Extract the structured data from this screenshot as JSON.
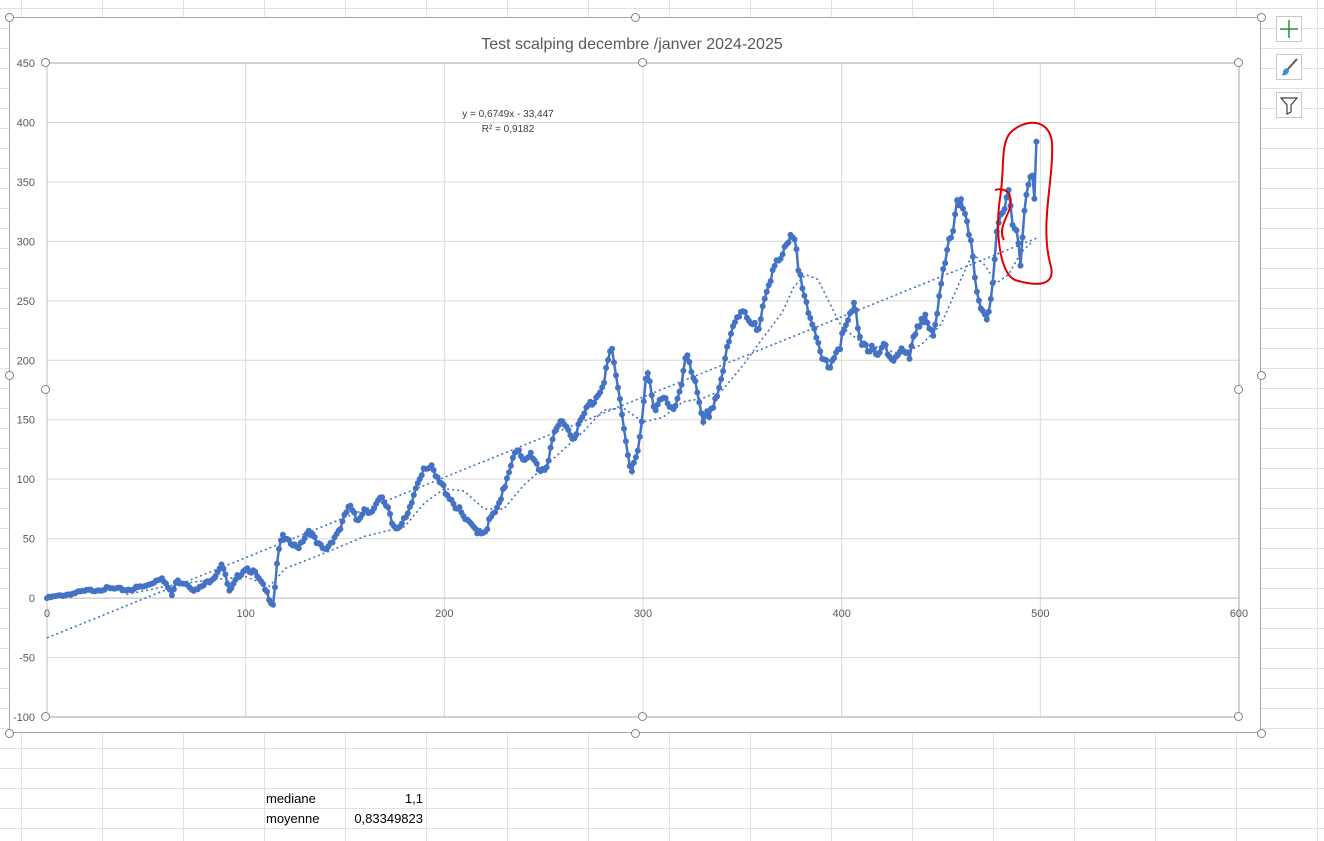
{
  "sheet": {
    "stats": [
      {
        "label": "mediane",
        "value": "1,1"
      },
      {
        "label": "moyenne",
        "value": "0,83349823"
      }
    ]
  },
  "side_buttons": [
    {
      "name": "chart-elements-button",
      "icon": "plus-icon"
    },
    {
      "name": "chart-styles-button",
      "icon": "brush-icon"
    },
    {
      "name": "chart-filters-button",
      "icon": "filter-icon"
    }
  ],
  "chart_data": {
    "type": "scatter",
    "title": "Test scalping decembre /janver 2024-2025",
    "xlim": [
      0,
      600
    ],
    "ylim": [
      -100,
      450
    ],
    "x_ticks": [
      0,
      100,
      200,
      300,
      400,
      500,
      600
    ],
    "y_ticks": [
      -100,
      -50,
      0,
      50,
      100,
      150,
      200,
      250,
      300,
      350,
      400,
      450
    ],
    "grid": true,
    "marker_color": "#4472c4",
    "annotation_color": "#e00000",
    "trendline_equation": "y = 0,6749x - 33,447",
    "trendline_r2": "R² = 0,9182",
    "trendline": {
      "slope": 0.6749,
      "intercept": -33.447
    },
    "series": [
      {
        "anchors": [
          [
            0,
            0
          ],
          [
            10,
            3
          ],
          [
            20,
            6
          ],
          [
            30,
            8
          ],
          [
            40,
            7
          ],
          [
            50,
            10
          ],
          [
            58,
            18
          ],
          [
            63,
            2
          ],
          [
            65,
            14
          ],
          [
            70,
            13
          ],
          [
            75,
            6
          ],
          [
            80,
            12
          ],
          [
            85,
            20
          ],
          [
            88,
            30
          ],
          [
            92,
            4
          ],
          [
            96,
            18
          ],
          [
            100,
            26
          ],
          [
            104,
            22
          ],
          [
            108,
            12
          ],
          [
            112,
            0
          ],
          [
            114,
            -5
          ],
          [
            116,
            35
          ],
          [
            118,
            52
          ],
          [
            122,
            46
          ],
          [
            126,
            42
          ],
          [
            132,
            58
          ],
          [
            136,
            45
          ],
          [
            140,
            40
          ],
          [
            144,
            50
          ],
          [
            148,
            60
          ],
          [
            152,
            78
          ],
          [
            156,
            65
          ],
          [
            160,
            76
          ],
          [
            164,
            72
          ],
          [
            168,
            84
          ],
          [
            172,
            76
          ],
          [
            174,
            62
          ],
          [
            178,
            60
          ],
          [
            182,
            70
          ],
          [
            186,
            95
          ],
          [
            190,
            112
          ],
          [
            194,
            108
          ],
          [
            196,
            100
          ],
          [
            200,
            92
          ],
          [
            204,
            82
          ],
          [
            208,
            72
          ],
          [
            212,
            62
          ],
          [
            216,
            58
          ],
          [
            220,
            56
          ],
          [
            224,
            68
          ],
          [
            228,
            78
          ],
          [
            232,
            105
          ],
          [
            236,
            128
          ],
          [
            240,
            112
          ],
          [
            244,
            122
          ],
          [
            248,
            108
          ],
          [
            252,
            112
          ],
          [
            256,
            140
          ],
          [
            260,
            152
          ],
          [
            264,
            135
          ],
          [
            268,
            145
          ],
          [
            272,
            160
          ],
          [
            276,
            168
          ],
          [
            280,
            182
          ],
          [
            284,
            210
          ],
          [
            286,
            190
          ],
          [
            290,
            150
          ],
          [
            292,
            125
          ],
          [
            294,
            108
          ],
          [
            298,
            125
          ],
          [
            302,
            190
          ],
          [
            306,
            160
          ],
          [
            310,
            172
          ],
          [
            314,
            155
          ],
          [
            318,
            165
          ],
          [
            322,
            210
          ],
          [
            326,
            182
          ],
          [
            330,
            145
          ],
          [
            334,
            158
          ],
          [
            338,
            175
          ],
          [
            342,
            205
          ],
          [
            346,
            230
          ],
          [
            350,
            245
          ],
          [
            354,
            235
          ],
          [
            358,
            222
          ],
          [
            362,
            255
          ],
          [
            366,
            284
          ],
          [
            370,
            286
          ],
          [
            374,
            300
          ],
          [
            376,
            302
          ],
          [
            378,
            280
          ],
          [
            382,
            255
          ],
          [
            386,
            222
          ],
          [
            390,
            200
          ],
          [
            394,
            198
          ],
          [
            398,
            210
          ],
          [
            402,
            225
          ],
          [
            406,
            245
          ],
          [
            410,
            218
          ],
          [
            414,
            210
          ],
          [
            418,
            200
          ],
          [
            422,
            215
          ],
          [
            426,
            200
          ],
          [
            430,
            210
          ],
          [
            434,
            200
          ],
          [
            438,
            230
          ],
          [
            442,
            240
          ],
          [
            446,
            215
          ],
          [
            450,
            260
          ],
          [
            454,
            305
          ],
          [
            456,
            310
          ],
          [
            458,
            340
          ],
          [
            462,
            320
          ],
          [
            466,
            288
          ],
          [
            468,
            260
          ],
          [
            470,
            245
          ],
          [
            474,
            235
          ],
          [
            476,
            260
          ],
          [
            478,
            305
          ],
          [
            482,
            330
          ],
          [
            484,
            345
          ],
          [
            486,
            318
          ],
          [
            488,
            310
          ],
          [
            490,
            278
          ],
          [
            492,
            322
          ],
          [
            494,
            345
          ],
          [
            496,
            352
          ],
          [
            497,
            340
          ],
          [
            498,
            384
          ]
        ],
        "marker_count": 500
      }
    ],
    "moving_average": [
      [
        40,
        3
      ],
      [
        60,
        10
      ],
      [
        80,
        15
      ],
      [
        100,
        18
      ],
      [
        112,
        10
      ],
      [
        120,
        25
      ],
      [
        140,
        38
      ],
      [
        160,
        52
      ],
      [
        180,
        60
      ],
      [
        190,
        80
      ],
      [
        200,
        92
      ],
      [
        210,
        90
      ],
      [
        220,
        75
      ],
      [
        230,
        75
      ],
      [
        240,
        95
      ],
      [
        250,
        110
      ],
      [
        260,
        125
      ],
      [
        270,
        140
      ],
      [
        280,
        158
      ],
      [
        290,
        160
      ],
      [
        300,
        148
      ],
      [
        310,
        152
      ],
      [
        320,
        165
      ],
      [
        330,
        168
      ],
      [
        340,
        175
      ],
      [
        350,
        195
      ],
      [
        360,
        218
      ],
      [
        370,
        240
      ],
      [
        376,
        262
      ],
      [
        382,
        272
      ],
      [
        388,
        268
      ],
      [
        394,
        248
      ],
      [
        400,
        228
      ],
      [
        410,
        215
      ],
      [
        420,
        210
      ],
      [
        430,
        205
      ],
      [
        440,
        213
      ],
      [
        450,
        230
      ],
      [
        460,
        268
      ],
      [
        466,
        290
      ],
      [
        472,
        280
      ],
      [
        478,
        265
      ],
      [
        484,
        272
      ],
      [
        490,
        290
      ],
      [
        496,
        300
      ]
    ]
  }
}
